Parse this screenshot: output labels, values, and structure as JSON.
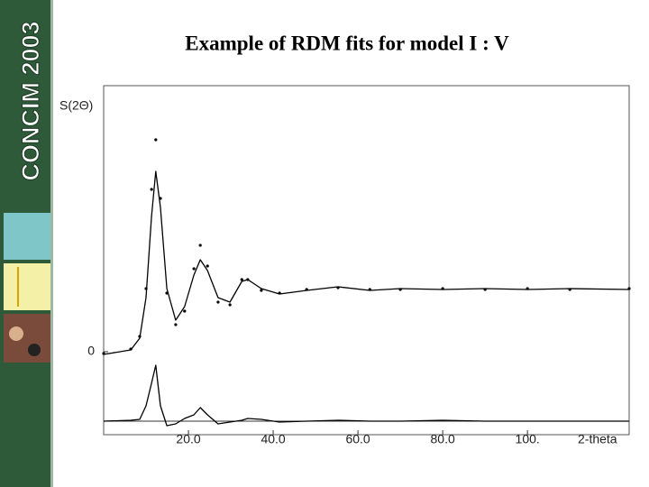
{
  "sidebar": {
    "brand": "CONCIM 2003"
  },
  "chart_data": {
    "type": "line",
    "title": "Example of RDM fits for model I : V",
    "y_label": "S(2Θ)",
    "x_label": "2-theta",
    "x": [
      0,
      6.4,
      8.5,
      10,
      11.3,
      12.3,
      13.4,
      14.9,
      17,
      19.1,
      21.3,
      22.8,
      24.5,
      27,
      29.8,
      32.6,
      34,
      37.2,
      41.5,
      47.9,
      55.3,
      62.8,
      70,
      80,
      90,
      100,
      110,
      124
    ],
    "series": [
      {
        "color": "#000000",
        "style": "line",
        "values": [
          -0.03,
          0.02,
          0.15,
          0.6,
          1.5,
          2.0,
          1.6,
          0.7,
          0.35,
          0.5,
          0.85,
          1.02,
          0.9,
          0.6,
          0.55,
          0.78,
          0.8,
          0.7,
          0.64,
          0.68,
          0.72,
          0.68,
          0.7,
          0.69,
          0.7,
          0.69,
          0.7,
          0.69
        ]
      },
      {
        "color": "#000000",
        "style": "dots",
        "values": [
          -0.02,
          0.03,
          0.17,
          0.7,
          1.8,
          2.35,
          1.7,
          0.65,
          0.3,
          0.45,
          0.92,
          1.18,
          0.95,
          0.55,
          0.52,
          0.8,
          0.8,
          0.68,
          0.65,
          0.69,
          0.71,
          0.69,
          0.69,
          0.7,
          0.69,
          0.7,
          0.69,
          0.7
        ]
      },
      {
        "color": "#000000",
        "style": "line",
        "values": [
          -0.77,
          -0.76,
          -0.75,
          -0.6,
          -0.35,
          -0.15,
          -0.6,
          -0.82,
          -0.8,
          -0.74,
          -0.7,
          -0.62,
          -0.7,
          -0.8,
          -0.78,
          -0.76,
          -0.74,
          -0.75,
          -0.78,
          -0.77,
          -0.76,
          -0.77,
          -0.77,
          -0.76,
          -0.77,
          -0.77,
          -0.77,
          -0.77
        ]
      }
    ],
    "xlim": [
      0,
      124
    ],
    "ylim": [
      -0.92,
      2.95
    ],
    "xticks": [
      {
        "value": 20,
        "label": "20.0"
      },
      {
        "value": 40,
        "label": "40.0"
      },
      {
        "value": 60,
        "label": "60.0"
      },
      {
        "value": 80,
        "label": "80.0"
      },
      {
        "value": 100,
        "label": "100."
      }
    ],
    "yticks": [
      0
    ]
  }
}
